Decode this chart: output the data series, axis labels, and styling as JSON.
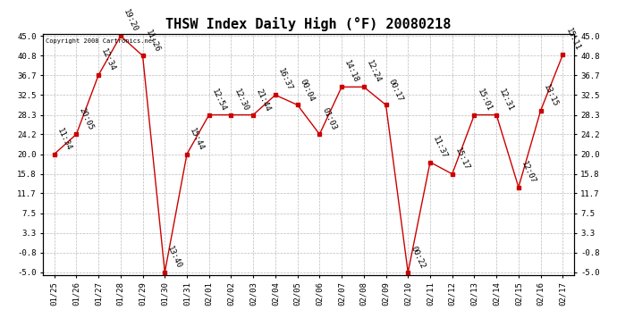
{
  "title": "THSW Index Daily High (°F) 20080218",
  "copyright": "Copyright 2008 Cartronics.net",
  "x_labels": [
    "01/25",
    "01/26",
    "01/27",
    "01/28",
    "01/29",
    "01/30",
    "01/31",
    "02/01",
    "02/02",
    "02/03",
    "02/04",
    "02/05",
    "02/06",
    "02/07",
    "02/08",
    "02/09",
    "02/10",
    "02/11",
    "02/12",
    "02/13",
    "02/14",
    "02/15",
    "02/16",
    "02/17"
  ],
  "y_values": [
    20.0,
    24.2,
    36.7,
    45.0,
    40.8,
    -5.0,
    20.0,
    28.3,
    28.3,
    28.3,
    32.5,
    30.4,
    24.2,
    34.2,
    34.2,
    30.4,
    -5.0,
    18.3,
    15.8,
    28.3,
    28.3,
    13.0,
    29.2,
    41.0
  ],
  "time_labels": [
    "11:34",
    "20:05",
    "12:34",
    "19:20",
    "11:26",
    "13:40",
    "15:44",
    "12:54",
    "12:30",
    "21:44",
    "16:37",
    "00:04",
    "01:03",
    "14:18",
    "12:24",
    "00:17",
    "00:22",
    "11:37",
    "15:17",
    "15:01",
    "12:31",
    "12:07",
    "13:15",
    "15:11"
  ],
  "ylim": [
    -5.0,
    45.0
  ],
  "yticks": [
    45.0,
    40.8,
    36.7,
    32.5,
    28.3,
    24.2,
    20.0,
    15.8,
    11.7,
    7.5,
    3.3,
    -0.8,
    -5.0
  ],
  "line_color": "#cc0000",
  "marker_color": "#cc0000",
  "bg_color": "#ffffff",
  "grid_color": "#bbbbbb",
  "title_fontsize": 11,
  "tick_fontsize": 6.5,
  "annotation_fontsize": 6.5
}
